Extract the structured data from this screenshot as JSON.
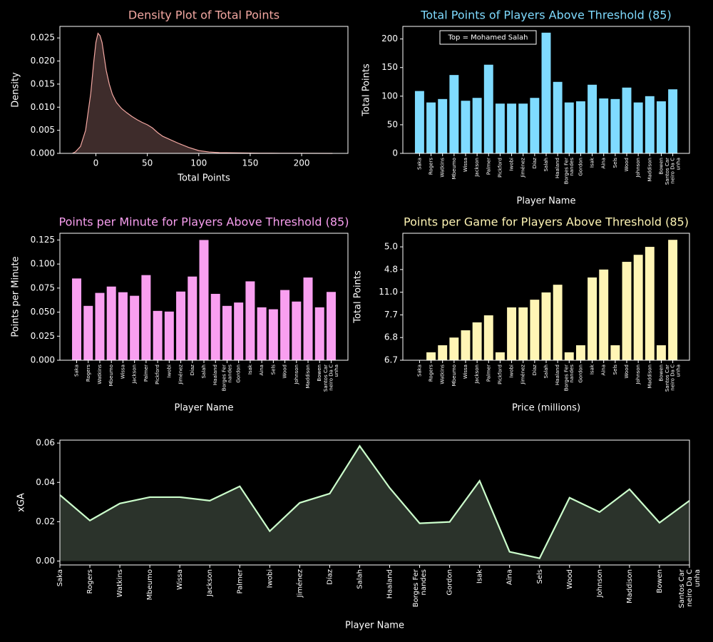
{
  "chart_data": [
    {
      "type": "area",
      "title": "Density Plot of Total Points",
      "title_color": "#f4a8a2",
      "xlabel": "Total Points",
      "ylabel": "Density",
      "x": [
        -23,
        -20,
        -15,
        -10,
        -5,
        -2,
        0,
        2,
        4,
        6,
        8,
        10,
        13,
        16,
        20,
        25,
        30,
        35,
        40,
        45,
        50,
        55,
        60,
        65,
        70,
        75,
        80,
        90,
        100,
        110,
        120,
        140,
        160,
        180,
        200,
        230
      ],
      "values": [
        0,
        0.0003,
        0.0015,
        0.005,
        0.013,
        0.02,
        0.024,
        0.026,
        0.0255,
        0.024,
        0.021,
        0.018,
        0.015,
        0.0128,
        0.011,
        0.0097,
        0.0088,
        0.008,
        0.0073,
        0.0067,
        0.0062,
        0.0055,
        0.0045,
        0.0037,
        0.0032,
        0.0027,
        0.0022,
        0.0013,
        0.0006,
        0.0003,
        0.00015,
        0.0001,
        5e-05,
        3e-05,
        2e-05,
        0
      ],
      "color": "#f4a8a2",
      "fill_color": "#3e2c2b",
      "xlim": [
        -35,
        245
      ],
      "xticks": [
        0,
        50,
        100,
        150,
        200
      ],
      "ylim": [
        0,
        0.0275
      ],
      "yticks": [
        {
          "value": 0,
          "label": "0.000"
        },
        0.005,
        {
          "value": 0.01,
          "label": "0.010"
        },
        0.015,
        {
          "value": 0.02,
          "label": "0.020"
        },
        0.025
      ]
    },
    {
      "type": "bar",
      "title": "Total Points of Players Above Threshold (85)",
      "title_color": "#7fdbff",
      "xlabel": "Player Name",
      "ylabel": "Total Points",
      "annotation": "Top = Mohamed Salah",
      "categories": [
        "Saka",
        "Rogers",
        "Watkins",
        "Mbeumo",
        "Wissa",
        "Jackson",
        "Palmer",
        "Pickford",
        "Iwobi",
        "Jiménez",
        "Díaz",
        "Salah",
        "Haaland",
        "Borges Fernandes",
        "Gordon",
        "Isak",
        "Aina",
        "Sels",
        "Wood",
        "Johnson",
        "Maddison",
        "Bowen",
        "Santos Carneiro Da Cunha"
      ],
      "values": [
        109,
        89,
        95,
        137,
        92,
        97,
        155,
        87,
        87,
        87,
        97,
        211,
        125,
        89,
        91,
        120,
        96,
        95,
        115,
        89,
        100,
        91,
        112
      ],
      "color": "#7fdbff",
      "ylim": [
        0,
        222
      ],
      "yticks": [
        0,
        50,
        100,
        150,
        200
      ]
    },
    {
      "type": "bar",
      "title": "Points per Minute for Players Above Threshold (85)",
      "title_color": "#f99ff0",
      "xlabel": "Player Name",
      "ylabel": "Points per Minute",
      "categories": [
        "Saka",
        "Rogers",
        "Watkins",
        "Mbeumo",
        "Wissa",
        "Jackson",
        "Palmer",
        "Pickford",
        "Iwobi",
        "Jiménez",
        "Díaz",
        "Salah",
        "Haaland",
        "Borges Fernandes",
        "Gordon",
        "Isak",
        "Aina",
        "Sels",
        "Wood",
        "Johnson",
        "Maddison",
        "Bowen",
        "Santos Carneiro Da Cunha"
      ],
      "values": [
        0.085,
        0.0565,
        0.07,
        0.0766,
        0.0707,
        0.067,
        0.0885,
        0.0513,
        0.0506,
        0.0714,
        0.087,
        0.125,
        0.069,
        0.0565,
        0.06,
        0.082,
        0.055,
        0.053,
        0.073,
        0.061,
        0.086,
        0.055,
        0.071
      ],
      "color": "#f99ff0",
      "ylim": [
        0,
        0.132
      ],
      "yticks": [
        {
          "value": 0,
          "label": "0.000"
        },
        0.025,
        {
          "value": 0.05,
          "label": "0.050"
        },
        0.075,
        {
          "value": 0.1,
          "label": "0.100"
        },
        0.125
      ]
    },
    {
      "type": "bar",
      "title": "Points per Game for Players Above Threshold (85)",
      "title_color": "#fff5b5",
      "xlabel": "Price (millions)",
      "ylabel": "Total Points",
      "categories": [
        "Saka",
        "Rogers",
        "Watkins",
        "Mbeumo",
        "Wissa",
        "Jackson",
        "Palmer",
        "Pickford",
        "Iwobi",
        "Jiménez",
        "Díaz",
        "Salah",
        "Haaland",
        "Borges Fernandes",
        "Gordon",
        "Isak",
        "Aina",
        "Sels",
        "Wood",
        "Johnson",
        "Maddison",
        "Bowen",
        "Santos Carneiro Da Cunha"
      ],
      "values": [
        0,
        0.35,
        0.66,
        1,
        1.32,
        1.67,
        1.98,
        0.35,
        2.33,
        2.33,
        2.67,
        2.99,
        3.33,
        0.35,
        0.66,
        3.65,
        4,
        0.66,
        4.34,
        4.65,
        5,
        0.66,
        5.31
      ],
      "color": "#fff5b5",
      "ylim": [
        0,
        5.6
      ],
      "yticks": [
        {
          "value": 0,
          "label": "6.7"
        },
        {
          "value": 1,
          "label": "6.8"
        },
        {
          "value": 2,
          "label": "7.7"
        },
        {
          "value": 3,
          "label": "11.0"
        },
        {
          "value": 4,
          "label": "4.8"
        },
        {
          "value": 5,
          "label": "5.0"
        }
      ]
    },
    {
      "type": "area",
      "xlabel": "Player Name",
      "ylabel": "xGA",
      "categories": [
        "Saka",
        "Rogers",
        "Watkins",
        "Mbeumo",
        "Wissa",
        "Jackson",
        "Palmer",
        "Iwobi",
        "Jiménez",
        "Díaz",
        "Salah",
        "Haaland",
        "Borges Fernandes",
        "Gordon",
        "Isak",
        "Aina",
        "Sels",
        "Wood",
        "Johnson",
        "Maddison",
        "Bowen",
        "Santos Carneiro Da Cunha"
      ],
      "values": [
        0.0336,
        0.0206,
        0.0293,
        0.0325,
        0.0325,
        0.0307,
        0.038,
        0.0152,
        0.0296,
        0.0343,
        0.0585,
        0.0372,
        0.0192,
        0.0199,
        0.0408,
        0.0047,
        0.0014,
        0.0322,
        0.0249,
        0.0365,
        0.0195,
        0.0307
      ],
      "color": "#ccffcc",
      "fill_color": "#2b332b",
      "ylim": [
        -0.002,
        0.0615
      ],
      "yticks": [
        {
          "value": 0,
          "label": "0.00"
        },
        0.02,
        0.04,
        0.06
      ]
    }
  ]
}
